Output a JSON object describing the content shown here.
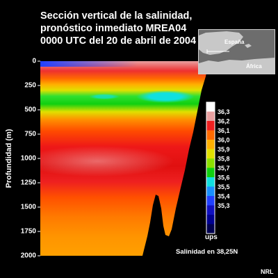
{
  "title_lines": [
    "Sección vertical de la salinidad,",
    "pronóstico inmediato MREA04",
    "0000 UTC del 20 de abril de 2004"
  ],
  "inset_map": {
    "labels": [
      "España",
      "África"
    ]
  },
  "legend": {
    "unit": "ups",
    "caption": "Salinidad en 38,25N",
    "levels": [
      "36,3",
      "36,2",
      "36,1",
      "36,0",
      "35,9",
      "35,8",
      "35,7",
      "35,6",
      "35,5",
      "35,4",
      "35,3"
    ],
    "colors": [
      "#ffffff",
      "#e8a0a0",
      "#ee2020",
      "#ff6a00",
      "#ffb000",
      "#e0e000",
      "#8ce000",
      "#10d010",
      "#10e0e0",
      "#1890ff",
      "#2040ff",
      "#1010c0",
      "#000090",
      "#000050"
    ]
  },
  "credit": "NRL",
  "chart_data": {
    "type": "heatmap",
    "title": "Sección vertical de la salinidad, pronóstico inmediato MREA04 0000 UTC del 20 de abril de 2004",
    "ylabel": "Profundidad (m)",
    "xlabel": "",
    "ylim": [
      0,
      2000
    ],
    "y_inverted": true,
    "yticks": [
      "0",
      "250",
      "500",
      "750",
      "1000",
      "1250",
      "1500",
      "1750",
      "2000"
    ],
    "ytick_values": [
      0,
      250,
      500,
      750,
      1000,
      1250,
      1500,
      1750,
      2000
    ],
    "colorbar": {
      "label": "ups",
      "min": 35.2,
      "max": 36.4,
      "ticks": [
        36.3,
        36.2,
        36.1,
        36.0,
        35.9,
        35.8,
        35.7,
        35.6,
        35.5,
        35.4,
        35.3
      ]
    },
    "depth_profile": {
      "depth_m": [
        0,
        100,
        250,
        350,
        450,
        600,
        800,
        1000,
        1250,
        1500,
        1750,
        2000
      ],
      "salinity_ups": [
        36.35,
        36.1,
        35.9,
        35.65,
        35.7,
        35.95,
        36.1,
        36.2,
        36.0,
        35.9,
        35.85,
        35.8
      ]
    }
  }
}
